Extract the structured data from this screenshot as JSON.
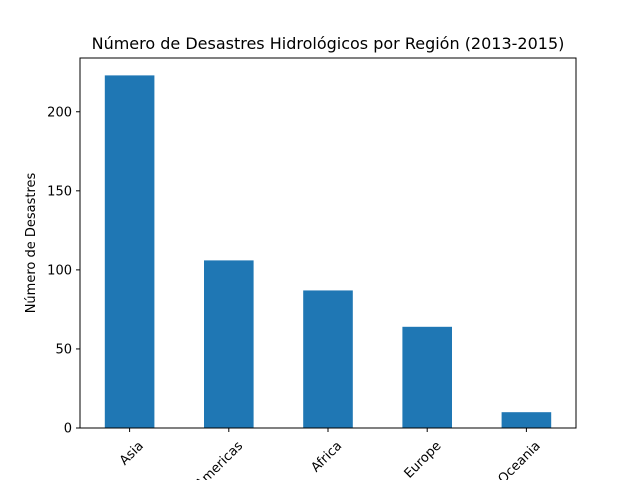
{
  "chart_data": {
    "type": "bar",
    "title": "Número de Desastres Hidrológicos por Región (2013-2015)",
    "xlabel": "",
    "ylabel": "Número de Desastres",
    "categories": [
      "Asia",
      "Americas",
      "Africa",
      "Europe",
      "Oceania"
    ],
    "values": [
      223,
      106,
      87,
      64,
      10
    ],
    "ylim": [
      0,
      234
    ],
    "yticks": [
      0,
      50,
      100,
      150,
      200
    ],
    "grid": false,
    "bar_color": "#1f77b4"
  }
}
